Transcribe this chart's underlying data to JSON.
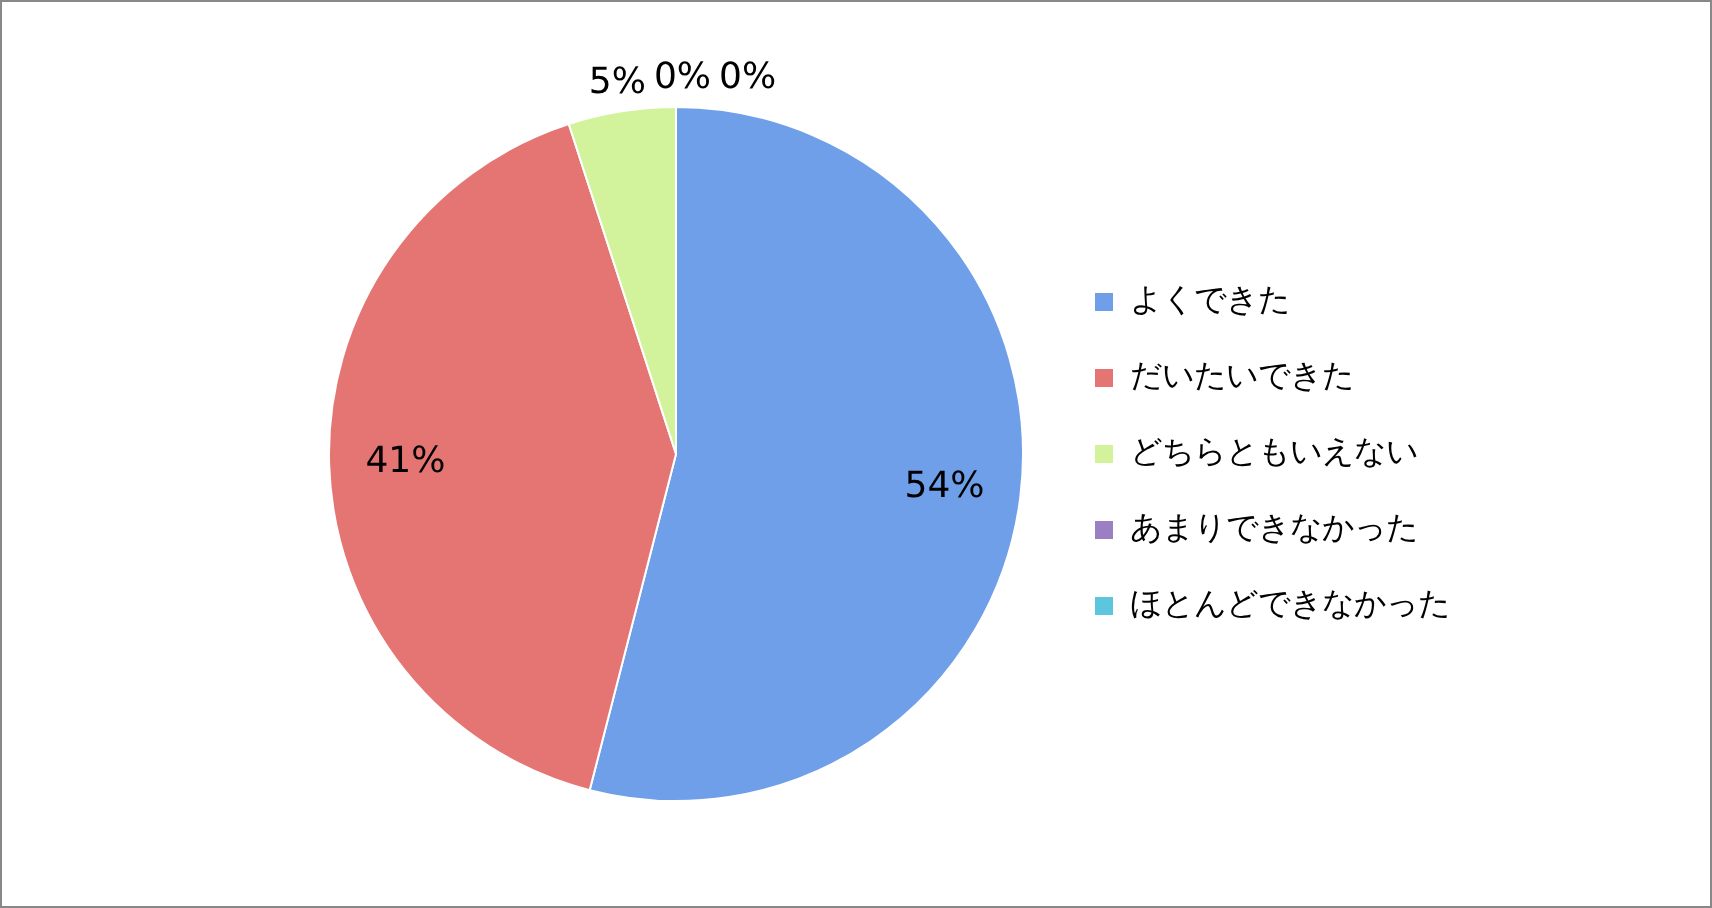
{
  "chart_data": {
    "type": "pie",
    "categories": [
      "よくできた",
      "だいたいできた",
      "どちらともいえない",
      "あまりできなかった",
      "ほとんどできなかった"
    ],
    "values": [
      54,
      41,
      5,
      0,
      0
    ],
    "colors": [
      "#6f9fe8",
      "#e57573",
      "#d2f39c",
      "#9a7fc2",
      "#5cc6de"
    ],
    "value_labels": [
      "54%",
      "41%",
      "5%",
      "0%",
      "0%"
    ],
    "legend": "right"
  }
}
